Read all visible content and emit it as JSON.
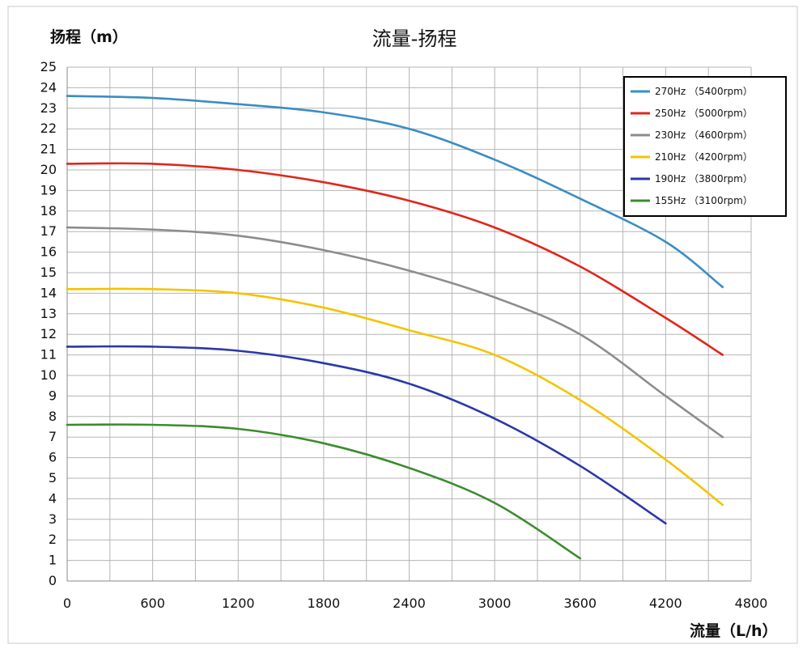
{
  "chart_data": {
    "type": "line",
    "title": "流量-扬程",
    "xlabel": "流量（L/h）",
    "ylabel": "扬程（m）",
    "xlim": [
      0,
      4800
    ],
    "ylim": [
      0,
      25
    ],
    "xticks": [
      0,
      600,
      1200,
      1800,
      2400,
      3000,
      3600,
      4200,
      4800
    ],
    "yticks": [
      0,
      1,
      2,
      3,
      4,
      5,
      6,
      7,
      8,
      9,
      10,
      11,
      12,
      13,
      14,
      15,
      16,
      17,
      18,
      19,
      20,
      21,
      22,
      23,
      24,
      25
    ],
    "grid": true,
    "legend_position": "top-right",
    "series": [
      {
        "name": "270Hz （5400rpm）",
        "color": "#3a8dc4",
        "points": [
          [
            0,
            23.6
          ],
          [
            600,
            23.5
          ],
          [
            1200,
            23.2
          ],
          [
            1800,
            22.8
          ],
          [
            2400,
            22.0
          ],
          [
            3000,
            20.5
          ],
          [
            3600,
            18.6
          ],
          [
            4200,
            16.5
          ],
          [
            4600,
            14.3
          ]
        ]
      },
      {
        "name": "250Hz （5000rpm）",
        "color": "#e0261b",
        "points": [
          [
            0,
            20.3
          ],
          [
            600,
            20.3
          ],
          [
            1200,
            20.0
          ],
          [
            1800,
            19.4
          ],
          [
            2400,
            18.5
          ],
          [
            3000,
            17.2
          ],
          [
            3600,
            15.3
          ],
          [
            4200,
            12.8
          ],
          [
            4600,
            11.0
          ]
        ]
      },
      {
        "name": "230Hz （4600rpm）",
        "color": "#8c8c8c",
        "points": [
          [
            0,
            17.2
          ],
          [
            600,
            17.1
          ],
          [
            1200,
            16.8
          ],
          [
            1800,
            16.1
          ],
          [
            2400,
            15.1
          ],
          [
            3000,
            13.8
          ],
          [
            3600,
            12.0
          ],
          [
            4200,
            9.0
          ],
          [
            4600,
            7.0
          ]
        ]
      },
      {
        "name": "210Hz （4200rpm）",
        "color": "#f3c400",
        "points": [
          [
            0,
            14.2
          ],
          [
            600,
            14.2
          ],
          [
            1200,
            14.0
          ],
          [
            1800,
            13.3
          ],
          [
            2400,
            12.2
          ],
          [
            3000,
            11.0
          ],
          [
            3600,
            8.8
          ],
          [
            4200,
            5.9
          ],
          [
            4600,
            3.7
          ]
        ]
      },
      {
        "name": "190Hz （3800rpm）",
        "color": "#2b37a8",
        "points": [
          [
            0,
            11.4
          ],
          [
            600,
            11.4
          ],
          [
            1200,
            11.2
          ],
          [
            1800,
            10.6
          ],
          [
            2400,
            9.6
          ],
          [
            3000,
            7.9
          ],
          [
            3600,
            5.6
          ],
          [
            4200,
            2.8
          ]
        ]
      },
      {
        "name": "155Hz （3100rpm）",
        "color": "#3b8c2e",
        "points": [
          [
            0,
            7.6
          ],
          [
            600,
            7.6
          ],
          [
            1200,
            7.4
          ],
          [
            1800,
            6.7
          ],
          [
            2400,
            5.5
          ],
          [
            3000,
            3.8
          ],
          [
            3600,
            1.1
          ]
        ]
      }
    ]
  }
}
